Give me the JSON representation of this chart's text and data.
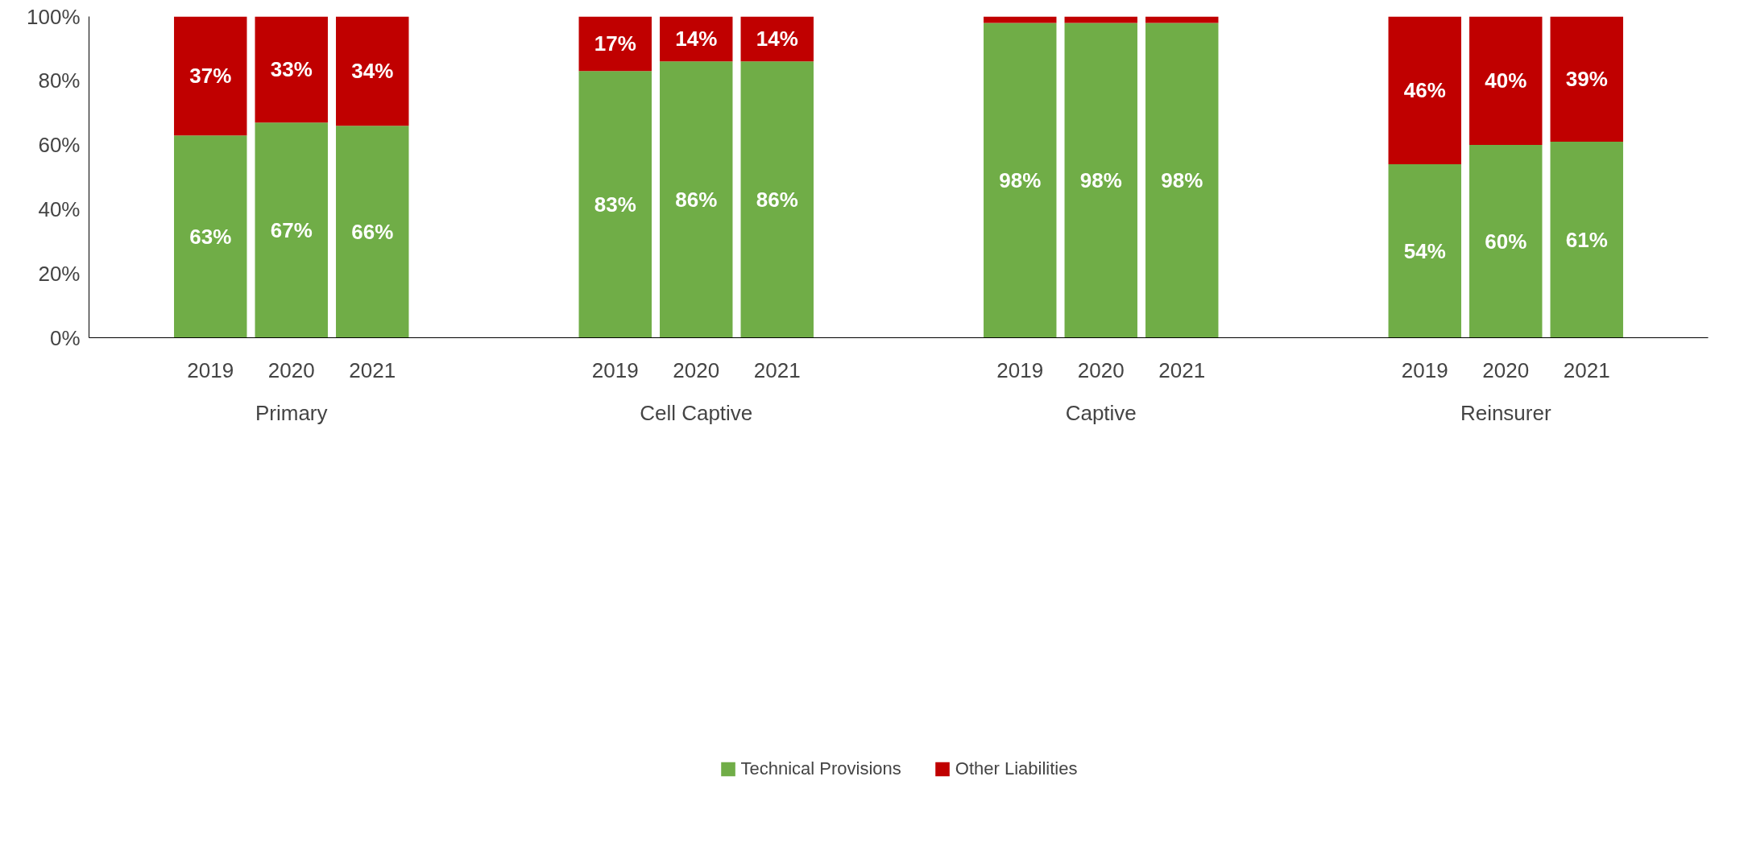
{
  "chart_data": {
    "type": "bar",
    "stacked": true,
    "categories": [
      "2019",
      "2020",
      "2021",
      "2019",
      "2020",
      "2021",
      "2019",
      "2020",
      "2021",
      "2019",
      "2020",
      "2021"
    ],
    "annotations": [
      "Primary",
      "Cell Captive",
      "Captive",
      "Reinsurer"
    ],
    "series": [
      {
        "name": "Technical Provisions",
        "color": "#70ad47",
        "values": [
          63,
          67,
          66,
          83,
          86,
          86,
          98,
          98,
          98,
          54,
          60,
          61
        ],
        "value_labels": [
          "63%",
          "67%",
          "66%",
          "83%",
          "86%",
          "86%",
          "98%",
          "98%",
          "98%",
          "54%",
          "60%",
          "61%"
        ]
      },
      {
        "name": "Other Liabilities",
        "color": "#c00000",
        "values": [
          37,
          33,
          34,
          17,
          14,
          14,
          2,
          2,
          2,
          46,
          40,
          39
        ],
        "value_labels": [
          "37%",
          "33%",
          "34%",
          "17%",
          "14%",
          "14%",
          null,
          null,
          null,
          "46%",
          "40%",
          "39%"
        ]
      }
    ],
    "ylim": [
      0,
      100
    ],
    "yticks": [
      {
        "value": 0,
        "label": "0%"
      },
      {
        "value": 20,
        "label": "20%"
      },
      {
        "value": 40,
        "label": "40%"
      },
      {
        "value": 60,
        "label": "60%"
      },
      {
        "value": 80,
        "label": "80%"
      },
      {
        "value": 100,
        "label": "100%"
      }
    ],
    "grid": false,
    "legend": "bottom"
  }
}
